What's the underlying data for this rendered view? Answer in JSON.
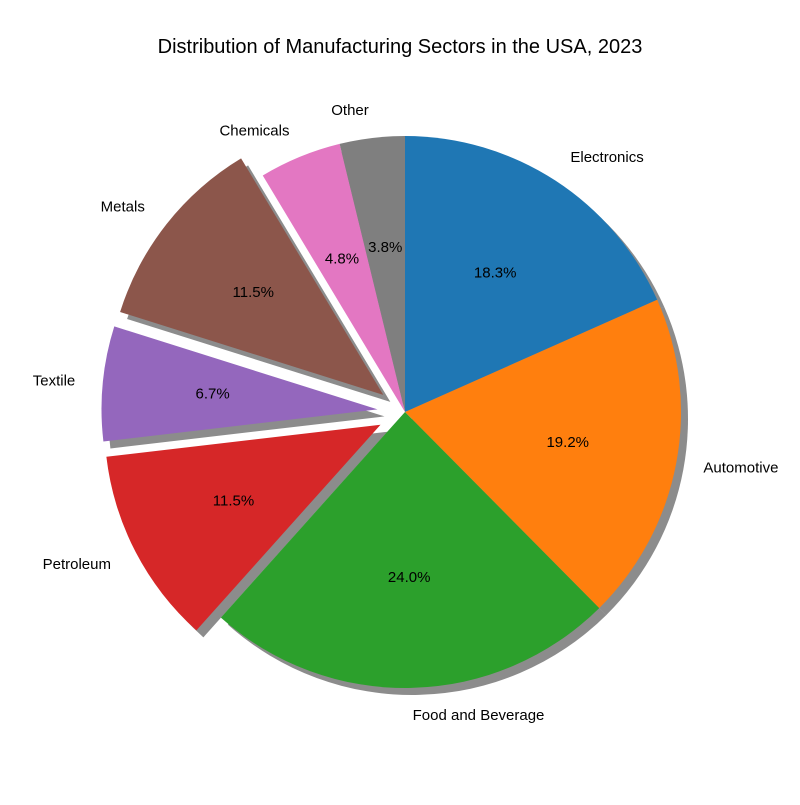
{
  "chart_data": {
    "type": "pie",
    "title": "Distribution of Manufacturing Sectors in the USA, 2023",
    "start_angle_deg": 90,
    "direction": "clockwise",
    "shadow": true,
    "slices": [
      {
        "label": "Electronics",
        "value": 18.3,
        "pct_label": "18.3%",
        "color": "#1f77b4",
        "exploded": false
      },
      {
        "label": "Automotive",
        "value": 19.2,
        "pct_label": "19.2%",
        "color": "#ff7f0e",
        "exploded": false
      },
      {
        "label": "Food and Beverage",
        "value": 24.0,
        "pct_label": "24.0%",
        "color": "#2ca02c",
        "exploded": false
      },
      {
        "label": "Petroleum",
        "value": 11.5,
        "pct_label": "11.5%",
        "color": "#d62728",
        "exploded": true
      },
      {
        "label": "Textile",
        "value": 6.7,
        "pct_label": "6.7%",
        "color": "#9467bd",
        "exploded": true
      },
      {
        "label": "Metals",
        "value": 11.5,
        "pct_label": "11.5%",
        "color": "#8c564b",
        "exploded": true
      },
      {
        "label": "Chemicals",
        "value": 4.8,
        "pct_label": "4.8%",
        "color": "#e377c2",
        "exploded": false
      },
      {
        "label": "Other",
        "value": 3.8,
        "pct_label": "3.8%",
        "color": "#7f7f7f",
        "exploded": false
      }
    ]
  }
}
